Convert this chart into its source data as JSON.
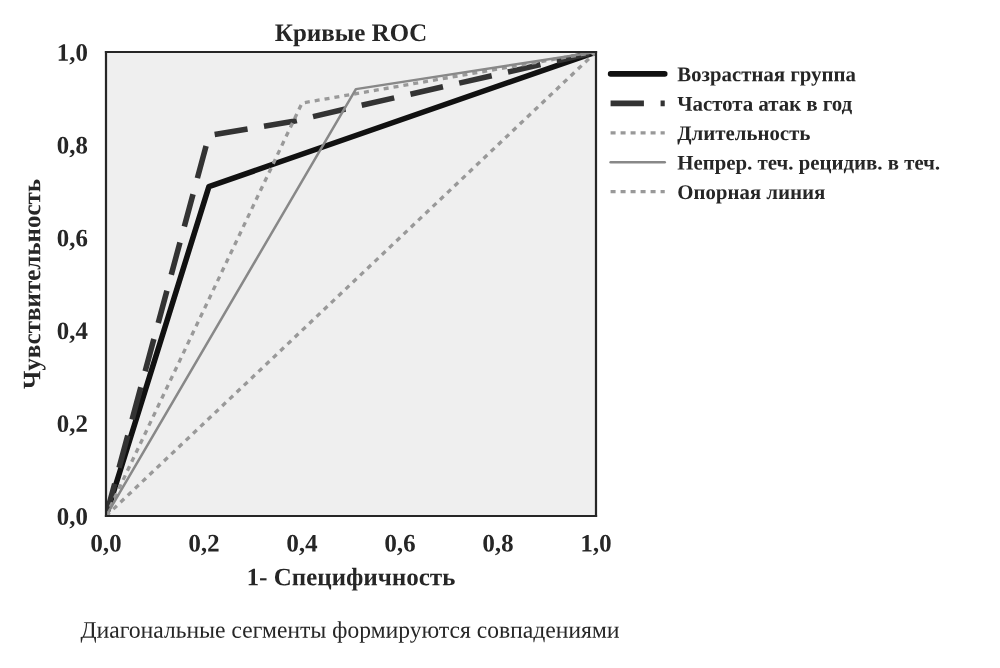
{
  "chart_data": {
    "type": "line",
    "title": "Кривые ROC",
    "xlabel": "1- Специфичность",
    "ylabel": "Чувствительность",
    "annotations": [
      "Диагональные сегменты формируются совпадениями"
    ],
    "series": [
      {
        "name": "Возрастная группа",
        "color": "#111111",
        "x": [
          0,
          0.21,
          1
        ],
        "values": [
          0,
          0.71,
          1
        ],
        "line_style": "solid"
      },
      {
        "name": "Частота атак в год",
        "color": "#333333",
        "x": [
          0,
          0.21,
          0.38,
          0.5,
          1
        ],
        "values": [
          0,
          0.82,
          0.85,
          0.88,
          1
        ],
        "line_style": "dashed"
      },
      {
        "name": "Длительность",
        "color": "#999999",
        "x": [
          0,
          0.4,
          1
        ],
        "values": [
          0,
          0.89,
          1
        ],
        "line_style": "dotted"
      },
      {
        "name": "Непрер. теч. рецидив. в теч.",
        "color": "#888888",
        "x": [
          0,
          0.51,
          1
        ],
        "values": [
          0,
          0.92,
          1
        ],
        "line_style": "solid"
      },
      {
        "name": "Опорная линия",
        "color": "#999999",
        "x": [
          0,
          1
        ],
        "values": [
          0,
          1
        ],
        "line_style": "dotted"
      }
    ],
    "xlim": [
      0,
      1
    ],
    "ylim": [
      0,
      1
    ],
    "xticks": [
      {
        "value": 0,
        "label": "0,0"
      },
      {
        "value": 0.2,
        "label": "0,2"
      },
      {
        "value": 0.4,
        "label": "0,4"
      },
      {
        "value": 0.6,
        "label": "0,6"
      },
      {
        "value": 0.8,
        "label": "0,8"
      },
      {
        "value": 1,
        "label": "1,0"
      }
    ],
    "yticks": [
      {
        "value": 0,
        "label": "0,0"
      },
      {
        "value": 0.2,
        "label": "0,2"
      },
      {
        "value": 0.4,
        "label": "0,4"
      },
      {
        "value": 0.6,
        "label": "0,6"
      },
      {
        "value": 0.8,
        "label": "0,8"
      },
      {
        "value": 1,
        "label": "1,0"
      }
    ],
    "grid": false,
    "legend": "top right"
  }
}
